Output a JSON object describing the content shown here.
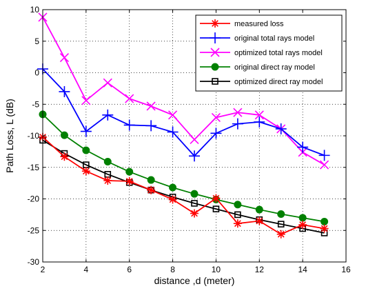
{
  "chart_data": {
    "type": "line",
    "xlabel": "distance ,d (meter)",
    "ylabel": "Path Loss, L (dB)",
    "xlim": [
      2,
      16
    ],
    "ylim": [
      -30,
      10
    ],
    "xticks": [
      2,
      4,
      6,
      8,
      10,
      12,
      14,
      16
    ],
    "yticks": [
      10,
      5,
      0,
      -5,
      -10,
      -15,
      -20,
      -25,
      -30
    ],
    "grid": "dotted",
    "legend_position": "top-right",
    "x": [
      2,
      3,
      4,
      5,
      6,
      7,
      8,
      9,
      10,
      11,
      12,
      13,
      14,
      15
    ],
    "series": [
      {
        "name": "measured loss",
        "color": "#ff0000",
        "marker": "asterisk",
        "values": [
          -10.2,
          -13.3,
          -15.6,
          -17.1,
          -17.2,
          -18.6,
          -20.1,
          -22.3,
          -19.9,
          -23.9,
          -23.5,
          -25.6,
          -24.1,
          -24.7
        ]
      },
      {
        "name": "original total rays model",
        "color": "#0000ff",
        "marker": "plus",
        "values": [
          0.6,
          -3.0,
          -9.3,
          -6.7,
          -8.3,
          -8.4,
          -9.4,
          -13.2,
          -9.6,
          -8.1,
          -7.8,
          -8.9,
          -11.8,
          -13.1
        ]
      },
      {
        "name": "optimized total rays model",
        "color": "#ff00ff",
        "marker": "x",
        "values": [
          8.8,
          2.4,
          -4.4,
          -1.6,
          -4.1,
          -5.3,
          -6.7,
          -10.6,
          -7.1,
          -6.3,
          -6.7,
          -8.9,
          -12.6,
          -14.6
        ]
      },
      {
        "name": "original direct ray model",
        "color": "#008000",
        "marker": "circle",
        "values": [
          -6.6,
          -9.9,
          -12.3,
          -14.1,
          -15.7,
          -17.0,
          -18.2,
          -19.2,
          -20.1,
          -20.9,
          -21.7,
          -22.4,
          -23.0,
          -23.6
        ]
      },
      {
        "name": "optimized direct ray model",
        "color": "#000000",
        "marker": "square",
        "values": [
          -10.7,
          -12.8,
          -14.6,
          -16.1,
          -17.4,
          -18.6,
          -19.7,
          -20.7,
          -21.6,
          -22.5,
          -23.3,
          -24.0,
          -24.7,
          -25.4
        ]
      }
    ]
  }
}
